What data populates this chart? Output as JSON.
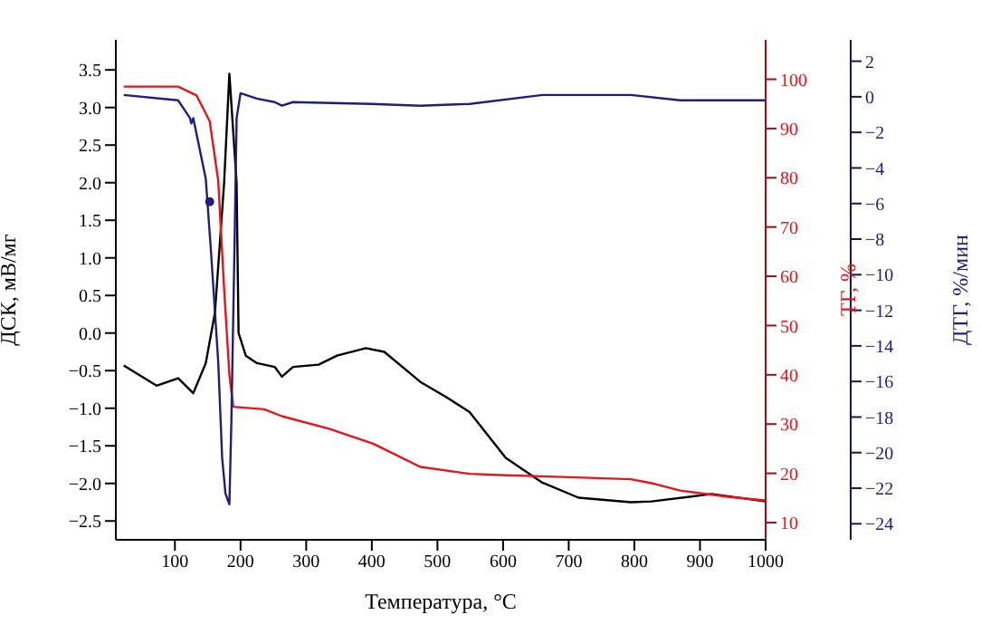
{
  "chart_data": {
    "type": "line",
    "xlabel": "Температура, °C",
    "ylabel": "ДСК, мВ/мг",
    "y2label": "ТГ, %",
    "y3label": "ДТГ, %/мин",
    "xlim": [
      10,
      1000
    ],
    "xticks": [
      100,
      200,
      300,
      400,
      500,
      600,
      700,
      800,
      900,
      1000
    ],
    "ylim": [
      -2.75,
      3.9
    ],
    "yticks": [
      {
        "value": -2.5,
        "label": "−2.5"
      },
      {
        "value": -2,
        "label": "−2.0"
      },
      {
        "value": -1.5,
        "label": "−1.5"
      },
      {
        "value": -1,
        "label": "−1.0"
      },
      {
        "value": -0.5,
        "label": "−0.5"
      },
      {
        "value": 0,
        "label": "0.0"
      },
      {
        "value": 0.5,
        "label": "0.5"
      },
      {
        "value": 1,
        "label": "1.0"
      },
      {
        "value": 1.5,
        "label": "1.5"
      },
      {
        "value": 2,
        "label": "2.0"
      },
      {
        "value": 2.5,
        "label": "2.5"
      },
      {
        "value": 3,
        "label": "3.0"
      },
      {
        "value": 3.5,
        "label": "3.5"
      }
    ],
    "y2lim": [
      6.5,
      108
    ],
    "y2ticks": [
      10,
      20,
      30,
      40,
      50,
      60,
      70,
      80,
      90,
      100
    ],
    "y3lim": [
      -24.9,
      3.2
    ],
    "y3ticks": [
      -24,
      -22,
      -20,
      -18,
      -16,
      -14,
      -12,
      -10,
      -8,
      -6,
      -4,
      -2,
      0,
      2
    ],
    "marker": "none",
    "line_style": "solid",
    "series": [
      {
        "color": "#000000",
        "x": [
          22,
          72,
          105,
          128,
          147,
          161,
          175,
          183,
          194,
          197,
          208,
          225,
          252,
          263,
          280,
          319,
          347,
          391,
          419,
          474,
          513,
          549,
          604,
          660,
          715,
          795,
          826,
          918,
          1000
        ],
        "values": [
          -0.43,
          -0.7,
          -0.6,
          -0.8,
          -0.4,
          0.27,
          2.0,
          3.45,
          2.0,
          0.0,
          -0.3,
          -0.4,
          -0.45,
          -0.58,
          -0.45,
          -0.42,
          -0.3,
          -0.2,
          -0.25,
          -0.65,
          -0.85,
          -1.05,
          -1.66,
          -1.99,
          -2.19,
          -2.25,
          -2.24,
          -2.14,
          -2.24
        ]
      },
      {
        "color": "#e8141b",
        "axis": "y2",
        "x": [
          22,
          105,
          133,
          153,
          166,
          175,
          183,
          189,
          236,
          263,
          336,
          402,
          474,
          549,
          604,
          660,
          795,
          826,
          870,
          945,
          1000
        ],
        "values": [
          98.5,
          98.5,
          96.7,
          91.5,
          79.4,
          57.4,
          40,
          33.5,
          33,
          31.6,
          29,
          26,
          21.3,
          19.9,
          19.6,
          19.4,
          18.8,
          18,
          16.5,
          15.2,
          14.5
        ]
      },
      {
        "color": "#1f1f7a",
        "axis": "y3",
        "x": [
          22,
          105,
          123,
          125,
          128,
          147,
          155,
          166,
          172,
          177,
          183,
          186,
          191,
          194,
          200,
          225,
          252,
          263,
          280,
          400,
          474,
          549,
          660,
          795,
          870,
          1000
        ],
        "values": [
          0.1,
          -0.2,
          -1.2,
          -1.5,
          -1.2,
          -4.6,
          -8.7,
          -14.9,
          -20.3,
          -22.3,
          -22.9,
          -18.3,
          -8,
          -1.2,
          0.2,
          -0.1,
          -0.3,
          -0.5,
          -0.3,
          -0.4,
          -0.5,
          -0.4,
          0.1,
          0.1,
          -0.2,
          -0.2
        ]
      },
      {
        "type": "scatter",
        "marker": "circle",
        "color": "#1f1f7a",
        "axis": "y3",
        "x": [
          153
        ],
        "values": [
          -5.9
        ]
      }
    ]
  }
}
